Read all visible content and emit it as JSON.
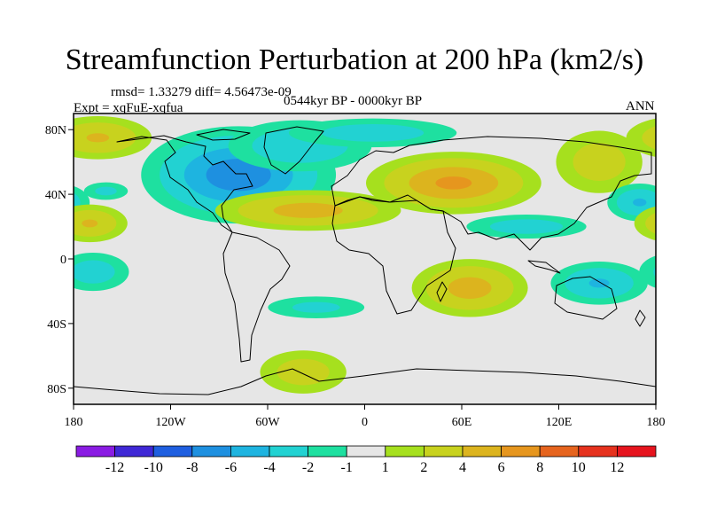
{
  "title": "Streamfunction Perturbation at 200 hPa (km2/s)",
  "rmsd_text": "rmsd= 1.33279 diff= 4.56473e-09",
  "period_text": "0544kyr BP - 0000kyr BP",
  "expt_text": "Expt = xqFuE-xqfua",
  "season": "ANN",
  "chart_data": {
    "type": "heatmap",
    "title": "Streamfunction Perturbation at 200 hPa (km2/s)",
    "units": "km2/s",
    "x_range": [
      -180,
      180
    ],
    "y_range": [
      -90,
      90
    ],
    "x_ticks": [
      {
        "value": -180,
        "label": "180"
      },
      {
        "value": -120,
        "label": "120W"
      },
      {
        "value": -60,
        "label": "60W"
      },
      {
        "value": 0,
        "label": "0"
      },
      {
        "value": 60,
        "label": "60E"
      },
      {
        "value": 120,
        "label": "120E"
      },
      {
        "value": 180,
        "label": "180"
      }
    ],
    "y_ticks": [
      {
        "value": 80,
        "label": "80N"
      },
      {
        "value": 40,
        "label": "40N"
      },
      {
        "value": 0,
        "label": "0"
      },
      {
        "value": -40,
        "label": "40S"
      },
      {
        "value": -80,
        "label": "80S"
      }
    ],
    "colorbar": {
      "labels": [
        "-12",
        "-10",
        "-8",
        "-6",
        "-4",
        "-2",
        "-1",
        "1",
        "2",
        "4",
        "6",
        "8",
        "10",
        "12"
      ],
      "colors": [
        "#8a1ce3",
        "#3f28d6",
        "#1f5fe0",
        "#1e90e0",
        "#1eb4e0",
        "#22d2d2",
        "#1ee0a0",
        "#e6e6e6",
        "#a6e01e",
        "#c8d21e",
        "#dcb41e",
        "#e6961e",
        "#e6641e",
        "#e6321e",
        "#e6141e"
      ]
    },
    "anomalies": [
      {
        "lon": -78,
        "lat": 52,
        "sx": 30,
        "sy": 15,
        "value": -7.5
      },
      {
        "lon": -40,
        "lat": 70,
        "sx": 28,
        "sy": 10,
        "value": -3.5
      },
      {
        "lon": -35,
        "lat": 30,
        "sx": 32,
        "sy": 7,
        "value": 5
      },
      {
        "lon": 55,
        "lat": 47,
        "sx": 28,
        "sy": 10,
        "value": 6.5
      },
      {
        "lon": 5,
        "lat": 78,
        "sx": 35,
        "sy": 6,
        "value": -3
      },
      {
        "lon": 100,
        "lat": 20,
        "sx": 25,
        "sy": 5,
        "value": -3
      },
      {
        "lon": 145,
        "lat": 60,
        "sx": 18,
        "sy": 13,
        "value": 3
      },
      {
        "lon": 170,
        "lat": 35,
        "sx": 12,
        "sy": 7,
        "value": -4
      },
      {
        "lon": -170,
        "lat": 22,
        "sx": 14,
        "sy": 7,
        "value": 4
      },
      {
        "lon": -160,
        "lat": 42,
        "sx": 10,
        "sy": 4,
        "value": -2.5
      },
      {
        "lon": -165,
        "lat": 75,
        "sx": 20,
        "sy": 8,
        "value": 4
      },
      {
        "lon": 65,
        "lat": -18,
        "sx": 20,
        "sy": 10,
        "value": 5
      },
      {
        "lon": 145,
        "lat": -15,
        "sx": 18,
        "sy": 8,
        "value": -4
      },
      {
        "lon": -168,
        "lat": -8,
        "sx": 15,
        "sy": 8,
        "value": -3
      },
      {
        "lon": -30,
        "lat": -30,
        "sx": 22,
        "sy": 5,
        "value": -2.5
      },
      {
        "lon": -38,
        "lat": -70,
        "sx": 18,
        "sy": 9,
        "value": 3
      }
    ]
  }
}
